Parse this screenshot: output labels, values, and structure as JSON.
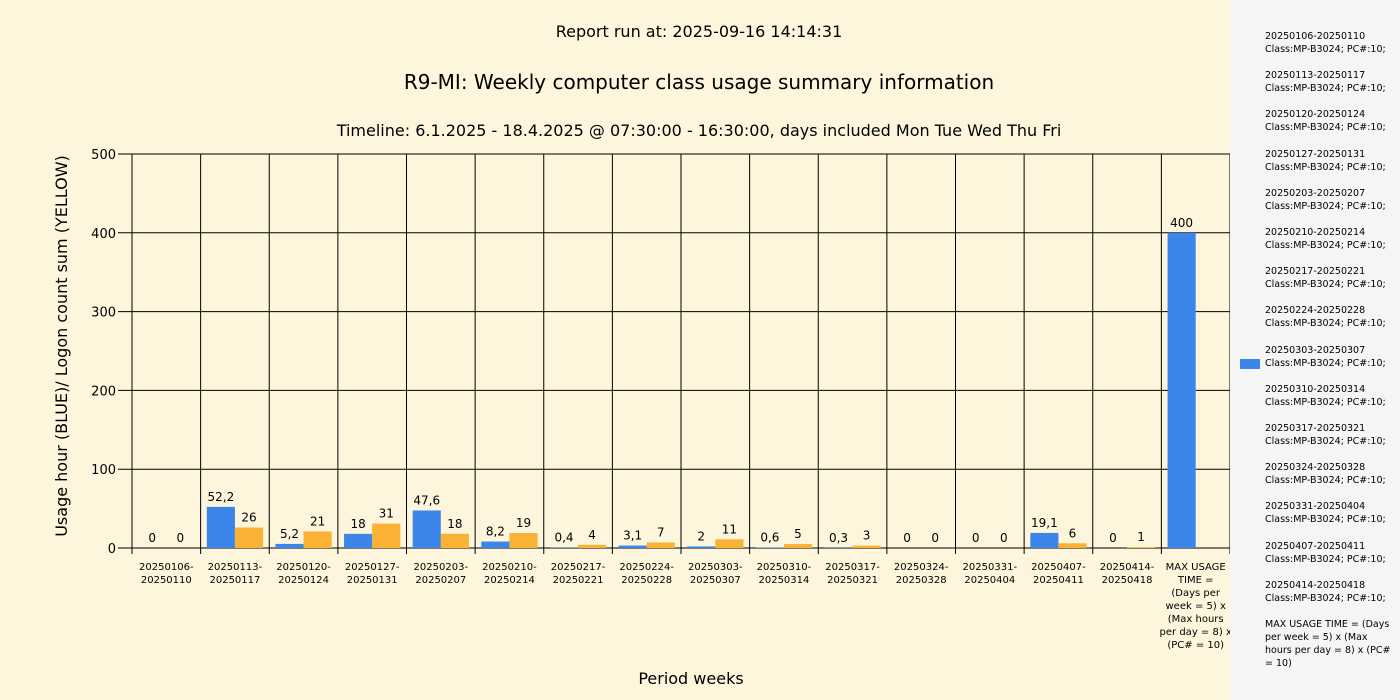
{
  "report_run": "Report run at: 2025-09-16 14:14:31",
  "chart_data": {
    "type": "bar",
    "title": "R9-MI: Weekly computer class usage summary information",
    "subtitle": "Timeline:  6.1.2025  - 18.4.2025  @  07:30:00 -  16:30:00, days included Mon Tue Wed Thu Fri",
    "xlabel": "Period weeks",
    "ylabel": "Usage hour (BLUE)/ Logon count sum (YELLOW)",
    "ylim": [
      0,
      500
    ],
    "yticks": [
      0,
      100,
      200,
      300,
      400,
      500
    ],
    "grid": true,
    "legend_position": "right",
    "colors": {
      "usage": "#3b86e8",
      "logons": "#f9b233",
      "background": "#fdf6dd",
      "legend_bg": "#f5f5f5"
    },
    "categories": [
      [
        "20250106-",
        "20250110"
      ],
      [
        "20250113-",
        "20250117"
      ],
      [
        "20250120-",
        "20250124"
      ],
      [
        "20250127-",
        "20250131"
      ],
      [
        "20250203-",
        "20250207"
      ],
      [
        "20250210-",
        "20250214"
      ],
      [
        "20250217-",
        "20250221"
      ],
      [
        "20250224-",
        "20250228"
      ],
      [
        "20250303-",
        "20250307"
      ],
      [
        "20250310-",
        "20250314"
      ],
      [
        "20250317-",
        "20250321"
      ],
      [
        "20250324-",
        "20250328"
      ],
      [
        "20250331-",
        "20250404"
      ],
      [
        "20250407-",
        "20250411"
      ],
      [
        "20250414-",
        "20250418"
      ],
      [
        "MAX USAGE",
        "TIME =",
        "(Days per",
        "week = 5) x",
        "(Max hours",
        "per day = 8) x",
        "(PC# = 10)"
      ]
    ],
    "series": [
      {
        "values": [
          0,
          52.2,
          5.2,
          18,
          47.6,
          8.2,
          0.4,
          3.1,
          2,
          0.6,
          0.3,
          0,
          0,
          19.1,
          0,
          400
        ],
        "labels": [
          "0",
          "52,2",
          "5,2",
          "18",
          "47,6",
          "8,2",
          "0,4",
          "3,1",
          "2",
          "0,6",
          "0,3",
          "0",
          "0",
          "19,1",
          "0",
          "400"
        ]
      },
      {
        "values": [
          0,
          26,
          21,
          31,
          18,
          19,
          4,
          7,
          11,
          5,
          3,
          0,
          0,
          6,
          1,
          null
        ],
        "labels": [
          "0",
          "26",
          "21",
          "31",
          "18",
          "19",
          "4",
          "7",
          "11",
          "5",
          "3",
          "0",
          "0",
          "6",
          "1",
          null
        ]
      }
    ]
  },
  "legend": {
    "items": [
      "20250106-20250110 Class:MP-B3024; PC#:10;",
      "20250113-20250117 Class:MP-B3024; PC#:10;",
      "20250120-20250124 Class:MP-B3024; PC#:10;",
      "20250127-20250131 Class:MP-B3024; PC#:10;",
      "20250203-20250207 Class:MP-B3024; PC#:10;",
      "20250210-20250214 Class:MP-B3024; PC#:10;",
      "20250217-20250221 Class:MP-B3024; PC#:10;",
      "20250224-20250228 Class:MP-B3024; PC#:10;",
      "20250303-20250307 Class:MP-B3024; PC#:10;",
      "20250310-20250314 Class:MP-B3024; PC#:10;",
      "20250317-20250321 Class:MP-B3024; PC#:10;",
      "20250324-20250328 Class:MP-B3024; PC#:10;",
      "20250331-20250404 Class:MP-B3024; PC#:10;",
      "20250407-20250411 Class:MP-B3024; PC#:10;",
      "20250414-20250418 Class:MP-B3024; PC#:10;",
      "MAX USAGE TIME = (Days per week = 5) x (Max hours per day = 8) x (PC# = 10)"
    ],
    "swatch_item_index": 8
  }
}
